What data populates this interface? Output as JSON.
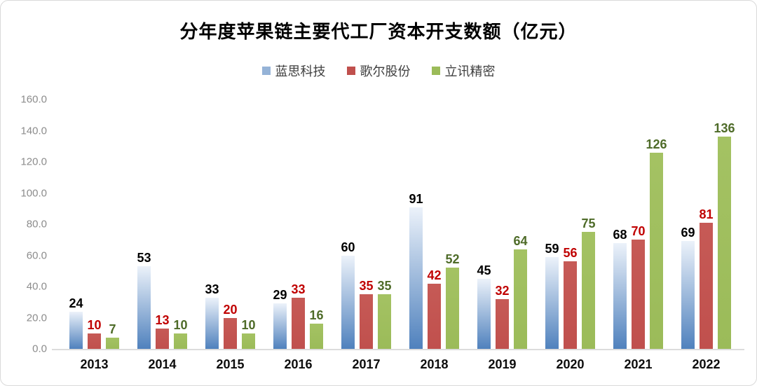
{
  "chart": {
    "title": "分年度苹果链主要代工厂资本开支数额（亿元）"
  },
  "chart_data": {
    "type": "bar",
    "title": "分年度苹果链主要代工厂资本开支数额（亿元）",
    "categories": [
      "2013",
      "2014",
      "2015",
      "2016",
      "2017",
      "2018",
      "2019",
      "2020",
      "2021",
      "2022"
    ],
    "series": [
      {
        "name": "蓝思科技",
        "values": [
          24,
          53,
          33,
          29,
          60,
          91,
          45,
          59,
          68,
          69
        ],
        "bar_color": "#4f81bd",
        "bar_gradient_top": "#ecf2fa",
        "label_color": "#000000",
        "legend_color": "#95b3d7"
      },
      {
        "name": "歌尔股份",
        "values": [
          10,
          13,
          20,
          33,
          35,
          42,
          32,
          56,
          70,
          81
        ],
        "bar_color": "#c0504d",
        "bar_gradient_top": "#c65a56",
        "label_color": "#c00000",
        "legend_color": "#c0504d"
      },
      {
        "name": "立讯精密",
        "values": [
          7,
          10,
          10,
          16,
          35,
          52,
          64,
          75,
          126,
          136
        ],
        "bar_color": "#9bbb59",
        "bar_gradient_top": "#a4c263",
        "label_color": "#4e6b28",
        "legend_color": "#9bbb59"
      }
    ],
    "ylim": [
      0,
      160
    ],
    "yticks": [
      "0.0",
      "20.0",
      "40.0",
      "60.0",
      "80.0",
      "100.0",
      "120.0",
      "140.0",
      "160.0"
    ],
    "grid": false,
    "legend_position": "top",
    "data_labels": true,
    "xlabel": "",
    "ylabel": ""
  }
}
